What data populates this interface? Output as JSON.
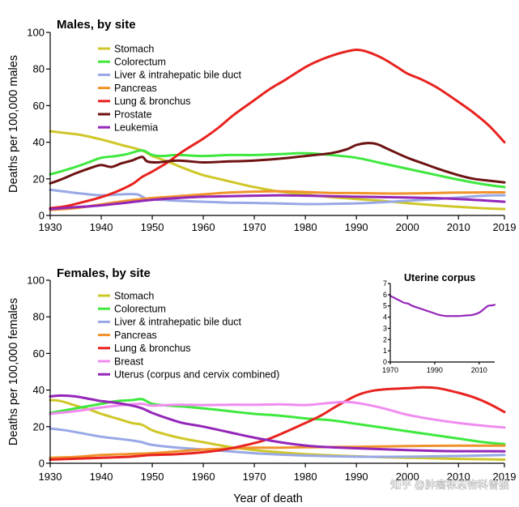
{
  "chart_data": [
    {
      "type": "line",
      "title": "Males, by site",
      "ylabel": "Deaths per 100,000 males",
      "xlim": [
        1930,
        2019
      ],
      "ylim": [
        0,
        100
      ],
      "xticks": [
        1930,
        1940,
        1950,
        1960,
        1970,
        1980,
        1990,
        2000,
        2010,
        2019
      ],
      "yticks": [
        0,
        20,
        40,
        60,
        80,
        100
      ],
      "grid": false,
      "legend": "upper-left",
      "series": [
        {
          "name": "Stomach",
          "color": "#cfc728",
          "x": [
            1930,
            1933,
            1936,
            1940,
            1944,
            1948,
            1950,
            1953,
            1956,
            1960,
            1963,
            1966,
            1970,
            1975,
            1980,
            1985,
            1990,
            1995,
            2000,
            2005,
            2010,
            2015,
            2019
          ],
          "y": [
            46,
            45,
            44,
            41.5,
            38.5,
            35.5,
            32.5,
            29.5,
            26,
            22,
            20,
            18,
            15.5,
            13,
            11.5,
            10,
            9,
            8,
            6.7,
            5.6,
            4.7,
            3.9,
            3.5
          ]
        },
        {
          "name": "Colorectum",
          "color": "#3ee83e",
          "x": [
            1930,
            1932,
            1935,
            1938,
            1940,
            1943,
            1945,
            1948,
            1950,
            1952,
            1955,
            1960,
            1965,
            1970,
            1975,
            1980,
            1985,
            1990,
            1995,
            2000,
            2005,
            2010,
            2015,
            2019
          ],
          "y": [
            22.5,
            24,
            26.5,
            29.5,
            31.5,
            32.5,
            33.5,
            35.5,
            33,
            32.5,
            33,
            32.5,
            33,
            33,
            33.5,
            34,
            33,
            31.5,
            28.5,
            25.5,
            22.5,
            19.5,
            17,
            15.5
          ]
        },
        {
          "name": "Liver & intrahepatic bile duct",
          "color": "#98a8e6",
          "x": [
            1930,
            1933,
            1936,
            1940,
            1944,
            1947,
            1949,
            1952,
            1955,
            1960,
            1965,
            1970,
            1975,
            1980,
            1985,
            1990,
            1995,
            2000,
            2005,
            2010,
            2015,
            2019
          ],
          "y": [
            14,
            13,
            12,
            11,
            11.5,
            11.5,
            9,
            8.5,
            8,
            7.5,
            7,
            6.8,
            6.5,
            6.2,
            6.3,
            6.6,
            7.2,
            8,
            8.8,
            9.8,
            10.8,
            11
          ]
        },
        {
          "name": "Pancreas",
          "color": "#f0922b",
          "x": [
            1930,
            1935,
            1940,
            1945,
            1950,
            1955,
            1960,
            1965,
            1970,
            1975,
            1980,
            1985,
            1990,
            1995,
            2000,
            2005,
            2010,
            2015,
            2019
          ],
          "y": [
            3,
            4,
            6,
            8,
            9.5,
            10.5,
            11.5,
            12.5,
            13,
            13.2,
            12.8,
            12.3,
            12.2,
            12,
            12,
            12.2,
            12.5,
            12.6,
            12.6
          ]
        },
        {
          "name": "Lung & bronchus",
          "color": "#e8231f",
          "x": [
            1930,
            1933,
            1936,
            1940,
            1943,
            1946,
            1948,
            1950,
            1953,
            1956,
            1960,
            1963,
            1966,
            1970,
            1973,
            1976,
            1980,
            1983,
            1986,
            1988,
            1990,
            1992,
            1995,
            1998,
            2000,
            2003,
            2006,
            2010,
            2013,
            2016,
            2019
          ],
          "y": [
            4,
            5,
            7,
            10,
            13,
            17,
            21,
            24,
            29,
            35,
            42,
            48,
            55,
            63,
            69,
            74,
            81,
            85,
            88,
            89.5,
            90.5,
            89.5,
            86,
            81,
            77.5,
            74,
            69.5,
            62,
            56,
            49,
            40
          ]
        },
        {
          "name": "Prostate",
          "color": "#6e1212",
          "x": [
            1930,
            1932,
            1935,
            1938,
            1940,
            1942,
            1944,
            1946,
            1948,
            1949,
            1951,
            1955,
            1960,
            1965,
            1970,
            1975,
            1980,
            1985,
            1988,
            1990,
            1992,
            1994,
            1996,
            2000,
            2003,
            2006,
            2010,
            2013,
            2016,
            2019
          ],
          "y": [
            17.5,
            19.5,
            23,
            26,
            27.5,
            26.5,
            28.5,
            30,
            32,
            29.5,
            29,
            30,
            29,
            29.5,
            30,
            31,
            32.5,
            34,
            36,
            38.5,
            39.5,
            39,
            36.5,
            31.5,
            28.5,
            25.5,
            22,
            20,
            19,
            18
          ]
        },
        {
          "name": "Leukemia",
          "color": "#9426b8",
          "x": [
            1930,
            1935,
            1940,
            1945,
            1950,
            1955,
            1960,
            1965,
            1970,
            1975,
            1980,
            1985,
            1990,
            1995,
            2000,
            2005,
            2010,
            2015,
            2019
          ],
          "y": [
            3.5,
            4.5,
            5.5,
            7,
            8.5,
            9.5,
            10.2,
            10.5,
            10.8,
            11,
            10.8,
            10.5,
            10.2,
            10,
            9.8,
            9.5,
            9,
            8.2,
            7.5
          ]
        }
      ]
    },
    {
      "type": "line",
      "title": "Females, by site",
      "xlabel": "Year of death",
      "ylabel": "Deaths per 100,000 females",
      "xlim": [
        1930,
        2019
      ],
      "ylim": [
        0,
        100
      ],
      "xticks": [
        1930,
        1940,
        1950,
        1960,
        1970,
        1980,
        1990,
        2000,
        2010,
        2019
      ],
      "yticks": [
        0,
        20,
        40,
        60,
        80,
        100
      ],
      "grid": false,
      "legend": "upper-left",
      "series": [
        {
          "name": "Stomach",
          "color": "#cfc728",
          "x": [
            1930,
            1932,
            1935,
            1938,
            1940,
            1943,
            1946,
            1948,
            1950,
            1953,
            1956,
            1960,
            1965,
            1970,
            1975,
            1980,
            1985,
            1990,
            1995,
            2000,
            2005,
            2010,
            2015,
            2019
          ],
          "y": [
            34.5,
            34,
            31.5,
            29,
            27,
            24.5,
            22,
            21,
            18,
            15.5,
            13.5,
            11.5,
            9,
            7.2,
            6,
            5,
            4.3,
            3.8,
            3.3,
            3,
            2.7,
            2.4,
            2.2,
            2
          ]
        },
        {
          "name": "Colorectum",
          "color": "#3ee83e",
          "x": [
            1930,
            1933,
            1936,
            1940,
            1943,
            1946,
            1948,
            1950,
            1953,
            1956,
            1960,
            1965,
            1970,
            1975,
            1980,
            1985,
            1990,
            1995,
            2000,
            2005,
            2010,
            2015,
            2019
          ],
          "y": [
            27.5,
            29,
            30.5,
            32.5,
            34,
            34.5,
            35,
            32.5,
            31.5,
            31,
            30,
            28.5,
            27,
            26,
            24.5,
            23.5,
            21.5,
            19.5,
            17.5,
            15.5,
            13.5,
            11.5,
            10.5
          ]
        },
        {
          "name": "Liver & intrahepatic bile duct",
          "color": "#98a8e6",
          "x": [
            1930,
            1933,
            1936,
            1940,
            1943,
            1946,
            1948,
            1950,
            1955,
            1960,
            1965,
            1970,
            1975,
            1980,
            1990,
            2000,
            2010,
            2019
          ],
          "y": [
            19,
            18,
            16.5,
            14.5,
            13.5,
            12.5,
            11.5,
            10,
            8.5,
            7.5,
            6.5,
            5.5,
            4.8,
            4.2,
            3.6,
            3.6,
            4,
            4.5
          ]
        },
        {
          "name": "Pancreas",
          "color": "#f0922b",
          "x": [
            1930,
            1935,
            1940,
            1945,
            1950,
            1955,
            1960,
            1965,
            1970,
            1975,
            1980,
            1990,
            2000,
            2010,
            2019
          ],
          "y": [
            3,
            3.5,
            4.5,
            5,
            5.5,
            6.5,
            7.5,
            8,
            8.5,
            8.5,
            8.7,
            9,
            9.4,
            9.6,
            9.6
          ]
        },
        {
          "name": "Lung & bronchus",
          "color": "#e8231f",
          "x": [
            1930,
            1935,
            1940,
            1945,
            1950,
            1955,
            1960,
            1963,
            1966,
            1970,
            1973,
            1976,
            1980,
            1983,
            1986,
            1990,
            1993,
            1996,
            2000,
            2003,
            2006,
            2010,
            2013,
            2016,
            2019
          ],
          "y": [
            2,
            2.5,
            3,
            3.5,
            4.5,
            5,
            6,
            7,
            8.5,
            11,
            13.5,
            17,
            22,
            26,
            31,
            37,
            39.5,
            40.5,
            41,
            41.5,
            41,
            38.5,
            36,
            32.5,
            28
          ]
        },
        {
          "name": "Breast",
          "color": "#f08cf0",
          "x": [
            1930,
            1935,
            1940,
            1945,
            1948,
            1950,
            1955,
            1960,
            1965,
            1970,
            1975,
            1980,
            1985,
            1988,
            1990,
            1993,
            1996,
            2000,
            2005,
            2010,
            2015,
            2019
          ],
          "y": [
            27,
            28.5,
            30.5,
            32,
            32.5,
            31.5,
            32,
            31.8,
            32,
            32,
            32.2,
            31.8,
            33,
            33.5,
            33,
            31.5,
            29.5,
            26.5,
            24,
            22,
            20.5,
            19.5
          ]
        },
        {
          "name": "Uterus (corpus and cervix combined)",
          "color": "#9426b8",
          "x": [
            1930,
            1932,
            1935,
            1938,
            1940,
            1943,
            1946,
            1948,
            1950,
            1953,
            1956,
            1960,
            1965,
            1970,
            1975,
            1980,
            1985,
            1990,
            1995,
            2000,
            2005,
            2010,
            2015,
            2019
          ],
          "y": [
            36.5,
            37,
            36.5,
            35,
            34,
            33,
            31.5,
            30,
            27.5,
            24.5,
            22,
            20,
            17,
            14,
            11.5,
            9.7,
            8.7,
            8.2,
            7.7,
            7.2,
            6.8,
            6.6,
            6.6,
            6.5
          ]
        }
      ]
    },
    {
      "type": "line",
      "title": "Uterine corpus",
      "xlim": [
        1970,
        2017
      ],
      "ylim": [
        0,
        7
      ],
      "xticks": [
        1970,
        1990,
        2010
      ],
      "yticks": [
        0,
        1,
        2,
        3,
        4,
        5,
        6,
        7
      ],
      "grid": false,
      "series": [
        {
          "color": "#9426b8",
          "x": [
            1970,
            1972,
            1974,
            1976,
            1978,
            1980,
            1983,
            1986,
            1989,
            1992,
            1995,
            1998,
            2001,
            2004,
            2007,
            2010,
            2012,
            2014,
            2016,
            2017
          ],
          "y": [
            5.9,
            5.7,
            5.5,
            5.3,
            5.2,
            5.0,
            4.8,
            4.6,
            4.4,
            4.2,
            4.1,
            4.1,
            4.1,
            4.15,
            4.2,
            4.4,
            4.7,
            5.0,
            5.05,
            5.1
          ]
        }
      ]
    }
  ],
  "watermark": "知乎 @肿瘤标志物科普猫"
}
